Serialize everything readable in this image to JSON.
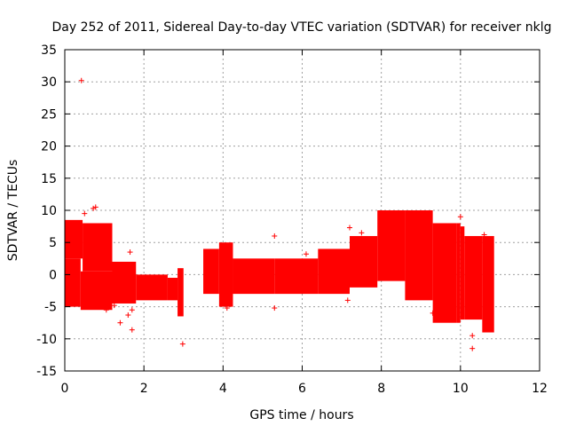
{
  "colors": {
    "series": "#ff0000",
    "grid": "#a0a0a0",
    "axis": "#000000",
    "background": "#ffffff"
  },
  "chart_data": {
    "type": "scatter",
    "title": "Day 252 of 2011, Sidereal Day-to-day VTEC variation (SDTVAR) for receiver nklg",
    "xlabel": "GPS time / hours",
    "ylabel": "SDTVAR / TECUs",
    "xlim": [
      0,
      12
    ],
    "ylim": [
      -15,
      35
    ],
    "xticks": [
      0,
      2,
      4,
      6,
      8,
      10,
      12
    ],
    "yticks": [
      -15,
      -10,
      -5,
      0,
      5,
      10,
      15,
      20,
      25,
      30,
      35
    ],
    "grid": true,
    "marker": "+",
    "series_name": "SDTVAR",
    "bands": [
      {
        "x0": 0.0,
        "x1": 0.45,
        "lo": 2.5,
        "hi": 8.5
      },
      {
        "x0": 0.45,
        "x1": 1.2,
        "lo": 0.5,
        "hi": 8.0
      },
      {
        "x0": 0.0,
        "x1": 0.4,
        "lo": -5.0,
        "hi": 2.5
      },
      {
        "x0": 0.4,
        "x1": 1.2,
        "lo": -5.5,
        "hi": 0.5
      },
      {
        "x0": 1.2,
        "x1": 1.8,
        "lo": -4.5,
        "hi": 2.0
      },
      {
        "x0": 1.8,
        "x1": 2.6,
        "lo": -4.0,
        "hi": 0.0
      },
      {
        "x0": 2.6,
        "x1": 2.85,
        "lo": -4.0,
        "hi": -0.5
      },
      {
        "x0": 2.85,
        "x1": 3.0,
        "lo": -6.5,
        "hi": 1.0
      },
      {
        "x0": 3.5,
        "x1": 3.9,
        "lo": -3.0,
        "hi": 4.0
      },
      {
        "x0": 3.9,
        "x1": 4.25,
        "lo": -5.0,
        "hi": 5.0
      },
      {
        "x0": 4.25,
        "x1": 5.3,
        "lo": -3.0,
        "hi": 2.5
      },
      {
        "x0": 5.3,
        "x1": 6.4,
        "lo": -3.0,
        "hi": 2.5
      },
      {
        "x0": 6.4,
        "x1": 7.2,
        "lo": -3.0,
        "hi": 4.0
      },
      {
        "x0": 7.2,
        "x1": 7.9,
        "lo": -2.0,
        "hi": 6.0
      },
      {
        "x0": 7.9,
        "x1": 8.6,
        "lo": -1.0,
        "hi": 10.0
      },
      {
        "x0": 8.6,
        "x1": 9.3,
        "lo": -4.0,
        "hi": 10.0
      },
      {
        "x0": 9.3,
        "x1": 9.9,
        "lo": -7.5,
        "hi": 8.0
      },
      {
        "x0": 9.9,
        "x1": 10.0,
        "lo": -7.5,
        "hi": 8.0
      },
      {
        "x0": 10.0,
        "x1": 10.1,
        "lo": -7.0,
        "hi": 7.5
      },
      {
        "x0": 10.1,
        "x1": 10.55,
        "lo": -7.0,
        "hi": 6.0
      },
      {
        "x0": 10.55,
        "x1": 10.85,
        "lo": -9.0,
        "hi": 6.0
      }
    ],
    "outliers": [
      {
        "x": 0.42,
        "y": 30.2
      },
      {
        "x": 0.72,
        "y": 10.3
      },
      {
        "x": 0.78,
        "y": 10.5
      },
      {
        "x": 0.5,
        "y": 9.5
      },
      {
        "x": 1.03,
        "y": 5.5
      },
      {
        "x": 1.05,
        "y": -5.5
      },
      {
        "x": 1.25,
        "y": -4.8
      },
      {
        "x": 1.4,
        "y": -7.5
      },
      {
        "x": 1.6,
        "y": -6.3
      },
      {
        "x": 1.7,
        "y": -8.6
      },
      {
        "x": 1.65,
        "y": 3.5
      },
      {
        "x": 1.7,
        "y": -5.5
      },
      {
        "x": 2.98,
        "y": -10.8
      },
      {
        "x": 4.1,
        "y": -5.2
      },
      {
        "x": 5.3,
        "y": -5.2
      },
      {
        "x": 5.3,
        "y": 6.0
      },
      {
        "x": 6.1,
        "y": 3.2
      },
      {
        "x": 7.2,
        "y": 7.3
      },
      {
        "x": 7.15,
        "y": -4.0
      },
      {
        "x": 7.5,
        "y": 6.5
      },
      {
        "x": 9.3,
        "y": -6.0
      },
      {
        "x": 10.0,
        "y": 9.0
      },
      {
        "x": 10.3,
        "y": -11.5
      },
      {
        "x": 10.3,
        "y": -9.5
      },
      {
        "x": 10.6,
        "y": 6.2
      }
    ]
  }
}
